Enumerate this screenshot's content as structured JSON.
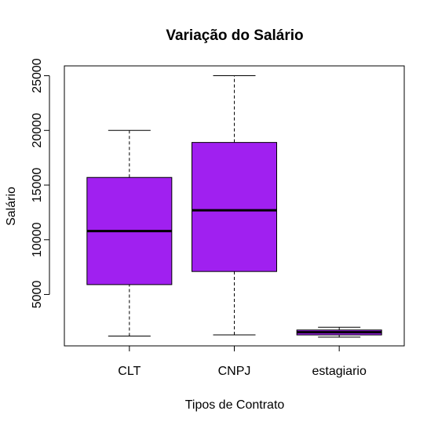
{
  "chart_data": {
    "type": "boxplot",
    "title": "Variação do Salário",
    "xlabel": "Tipos de Contrato",
    "ylabel": "Salário",
    "categories": [
      "CLT",
      "CNPJ",
      "estagiario"
    ],
    "yticks": [
      5000,
      10000,
      15000,
      20000,
      25000
    ],
    "ylim": [
      300,
      25900
    ],
    "grid": false,
    "box_color": "#A020F0",
    "boxes": [
      {
        "category": "CLT",
        "min": 1200,
        "q1": 5900,
        "median": 10800,
        "q3": 15700,
        "max": 20000
      },
      {
        "category": "CNPJ",
        "min": 1300,
        "q1": 7100,
        "median": 12700,
        "q3": 18900,
        "max": 25000
      },
      {
        "category": "estagiario",
        "min": 1100,
        "q1": 1300,
        "median": 1550,
        "q3": 1750,
        "max": 2000
      }
    ]
  }
}
